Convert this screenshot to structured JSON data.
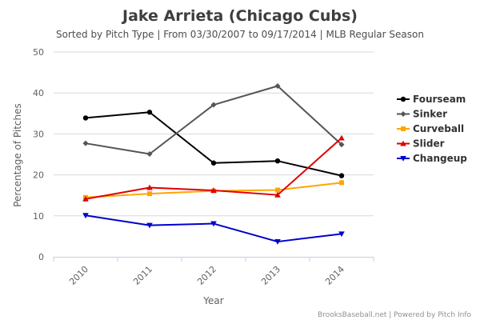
{
  "chart_data": {
    "type": "line",
    "title": "Jake Arrieta (Chicago Cubs)",
    "subtitle": "Sorted by Pitch Type | From 03/30/2007 to 09/17/2014 | MLB Regular Season",
    "xlabel": "Year",
    "ylabel": "Percentage of Pitches",
    "categories": [
      "2010",
      "2011",
      "2012",
      "2013",
      "2014"
    ],
    "ylim": [
      0,
      50
    ],
    "yticks": [
      0,
      10,
      20,
      30,
      40,
      50
    ],
    "grid": true,
    "legend_position": "right",
    "series": [
      {
        "name": "Fourseam",
        "color": "#000000",
        "marker": "circle",
        "values": [
          33.9,
          35.3,
          22.9,
          23.4,
          19.8
        ]
      },
      {
        "name": "Sinker",
        "color": "#555555",
        "marker": "diamond",
        "values": [
          27.7,
          25.1,
          37.1,
          41.7,
          27.4
        ]
      },
      {
        "name": "Curveball",
        "color": "#ffa500",
        "marker": "square",
        "values": [
          14.5,
          15.4,
          16.1,
          16.3,
          18.1
        ]
      },
      {
        "name": "Slider",
        "color": "#e00000",
        "marker": "triangle",
        "values": [
          14.1,
          16.9,
          16.2,
          15.1,
          29.0
        ]
      },
      {
        "name": "Changeup",
        "color": "#0000cc",
        "marker": "triangle-down",
        "values": [
          10.1,
          7.7,
          8.1,
          3.7,
          5.6
        ]
      }
    ]
  },
  "credits": "BrooksBaseball.net | Powered by Pitch Info"
}
